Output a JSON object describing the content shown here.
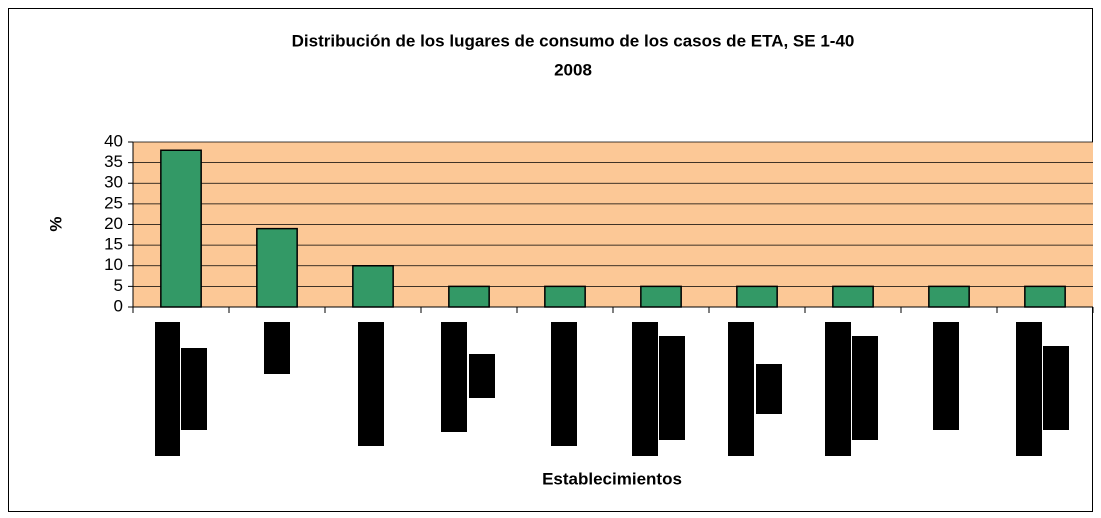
{
  "chart_data": {
    "type": "bar",
    "title": "Distribución de los lugares de consumo de los casos de ETA, SE 1-40",
    "subtitle": "2008",
    "x_label": "Establecimientos",
    "y_label": "%",
    "categories": [
      null,
      null,
      null,
      null,
      null,
      null,
      null,
      null,
      null,
      null
    ],
    "values": [
      38,
      19,
      10,
      5,
      5,
      5,
      5,
      5,
      5,
      5
    ],
    "color": "#339966",
    "ylim": [
      0,
      40
    ],
    "yticks": [
      0,
      5,
      10,
      15,
      20,
      25,
      30,
      35,
      40
    ],
    "grid": true
  }
}
